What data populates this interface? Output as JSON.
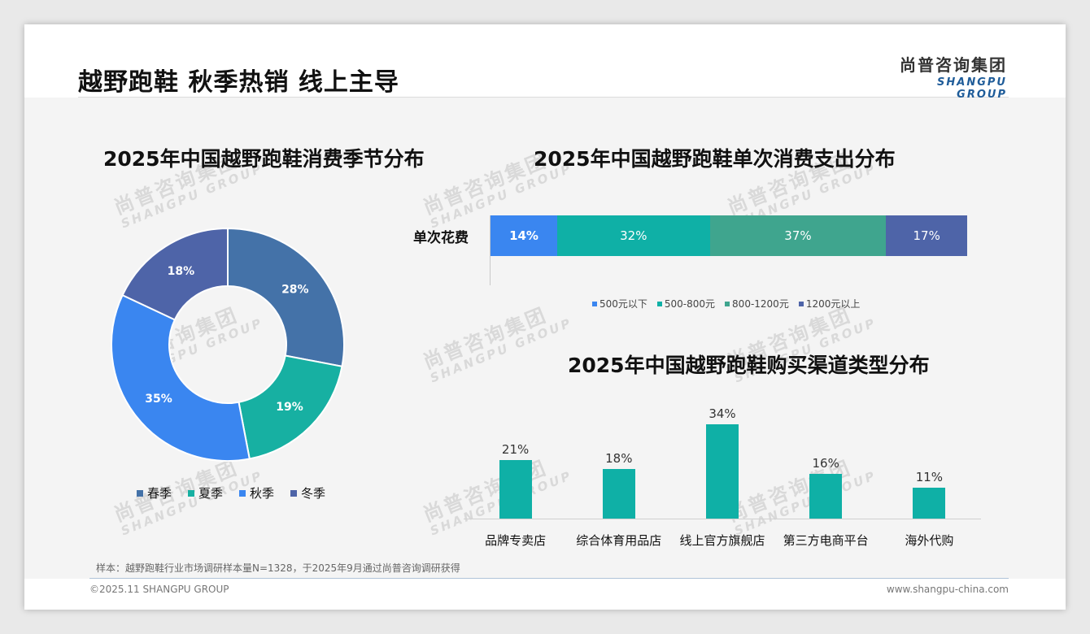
{
  "page": {
    "title": "越野跑鞋 秋季热销 线上主导",
    "logo_cn": "尚普咨询集团",
    "logo_en": "SHANGPU GROUP",
    "watermark_cn": "尚普咨询集团",
    "watermark_en": "SHANGPU GROUP",
    "footer_note": "样本：越野跑鞋行业市场调研样本量N=1328，于2025年9月通过尚普咨询调研获得",
    "copyright": "©2025.11 SHANGPU GROUP",
    "website": "www.shangpu-china.com"
  },
  "chart_data": [
    {
      "type": "donut",
      "title": "2025年中国越野跑鞋消费季节分布",
      "categories": [
        "春季",
        "夏季",
        "秋季",
        "冬季"
      ],
      "values": [
        28,
        19,
        35,
        18
      ],
      "labels": [
        "28%",
        "19%",
        "35%",
        "18%"
      ],
      "colors": [
        "#4472a8",
        "#17b0a2",
        "#3a86f0",
        "#4e64a8"
      ],
      "legend": "bottom"
    },
    {
      "type": "bar",
      "orientation": "horizontal-stacked",
      "title": "2025年中国越野跑鞋单次消费支出分布",
      "row_label": "单次花费",
      "series": [
        {
          "name": "500元以下",
          "value": 14,
          "label": "14%",
          "color": "#3a86f0"
        },
        {
          "name": "500-800元",
          "value": 32,
          "label": "32%",
          "color": "#0fb0a6"
        },
        {
          "name": "800-1200元",
          "value": 37,
          "label": "37%",
          "color": "#3fa58e"
        },
        {
          "name": "1200元以上",
          "value": 17,
          "label": "17%",
          "color": "#4e64a8"
        }
      ],
      "legend": "bottom"
    },
    {
      "type": "bar",
      "title": "2025年中国越野跑鞋购买渠道类型分布",
      "categories": [
        "品牌专卖店",
        "综合体育用品店",
        "线上官方旗舰店",
        "第三方电商平台",
        "海外代购"
      ],
      "values": [
        21,
        18,
        34,
        16,
        11
      ],
      "labels": [
        "21%",
        "18%",
        "34%",
        "16%",
        "11%"
      ],
      "color": "#0fb0a6",
      "grid": false
    }
  ]
}
